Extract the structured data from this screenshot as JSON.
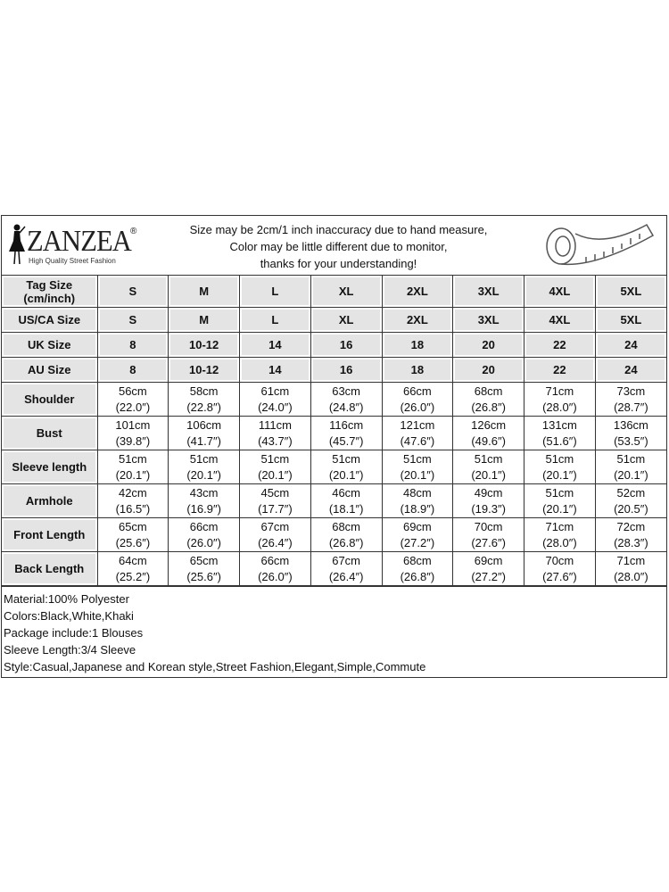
{
  "header": {
    "brand": "ZANZEA",
    "brand_tagline": "High Quality Street Fashion",
    "notice_lines": [
      "Size may be 2cm/1 inch inaccuracy due to hand measure,",
      "Color may be little different due to monitor,",
      "thanks for your understanding!"
    ],
    "icon": "measuring-tape-icon"
  },
  "size_rows": [
    {
      "label": "Tag Size (cm/inch)",
      "values": [
        "S",
        "M",
        "L",
        "XL",
        "2XL",
        "3XL",
        "4XL",
        "5XL"
      ]
    },
    {
      "label": "US/CA Size",
      "values": [
        "S",
        "M",
        "L",
        "XL",
        "2XL",
        "3XL",
        "4XL",
        "5XL"
      ]
    },
    {
      "label": "UK Size",
      "values": [
        "8",
        "10-12",
        "14",
        "16",
        "18",
        "20",
        "22",
        "24"
      ]
    },
    {
      "label": "AU Size",
      "values": [
        "8",
        "10-12",
        "14",
        "16",
        "18",
        "20",
        "22",
        "24"
      ]
    }
  ],
  "measure_rows": [
    {
      "label": "Shoulder",
      "cm": [
        "56cm",
        "58cm",
        "61cm",
        "63cm",
        "66cm",
        "68cm",
        "71cm",
        "73cm"
      ],
      "inch": [
        "(22.0″)",
        "(22.8″)",
        "(24.0″)",
        "(24.8″)",
        "(26.0″)",
        "(26.8″)",
        "(28.0″)",
        "(28.7″)"
      ]
    },
    {
      "label": "Bust",
      "cm": [
        "101cm",
        "106cm",
        "111cm",
        "116cm",
        "121cm",
        "126cm",
        "131cm",
        "136cm"
      ],
      "inch": [
        "(39.8″)",
        "(41.7″)",
        "(43.7″)",
        "(45.7″)",
        "(47.6″)",
        "(49.6″)",
        "(51.6″)",
        "(53.5″)"
      ]
    },
    {
      "label": "Sleeve length",
      "cm": [
        "51cm",
        "51cm",
        "51cm",
        "51cm",
        "51cm",
        "51cm",
        "51cm",
        "51cm"
      ],
      "inch": [
        "(20.1″)",
        "(20.1″)",
        "(20.1″)",
        "(20.1″)",
        "(20.1″)",
        "(20.1″)",
        "(20.1″)",
        "(20.1″)"
      ]
    },
    {
      "label": "Armhole",
      "cm": [
        "42cm",
        "43cm",
        "45cm",
        "46cm",
        "48cm",
        "49cm",
        "51cm",
        "52cm"
      ],
      "inch": [
        "(16.5″)",
        "(16.9″)",
        "(17.7″)",
        "(18.1″)",
        "(18.9″)",
        "(19.3″)",
        "(20.1″)",
        "(20.5″)"
      ]
    },
    {
      "label": "Front Length",
      "cm": [
        "65cm",
        "66cm",
        "67cm",
        "68cm",
        "69cm",
        "70cm",
        "71cm",
        "72cm"
      ],
      "inch": [
        "(25.6″)",
        "(26.0″)",
        "(26.4″)",
        "(26.8″)",
        "(27.2″)",
        "(27.6″)",
        "(28.0″)",
        "(28.3″)"
      ]
    },
    {
      "label": "Back Length",
      "cm": [
        "64cm",
        "65cm",
        "66cm",
        "67cm",
        "68cm",
        "69cm",
        "70cm",
        "71cm"
      ],
      "inch": [
        "(25.2″)",
        "(25.6″)",
        "(26.0″)",
        "(26.4″)",
        "(26.8″)",
        "(27.2″)",
        "(27.6″)",
        "(28.0″)"
      ]
    }
  ],
  "notes": [
    "Material:100% Polyester",
    "Colors:Black,White,Khaki",
    "Package include:1 Blouses",
    "Sleeve Length:3/4 Sleeve",
    "Style:Casual,Japanese and Korean style,Street Fashion,Elegant,Simple,Commute"
  ]
}
